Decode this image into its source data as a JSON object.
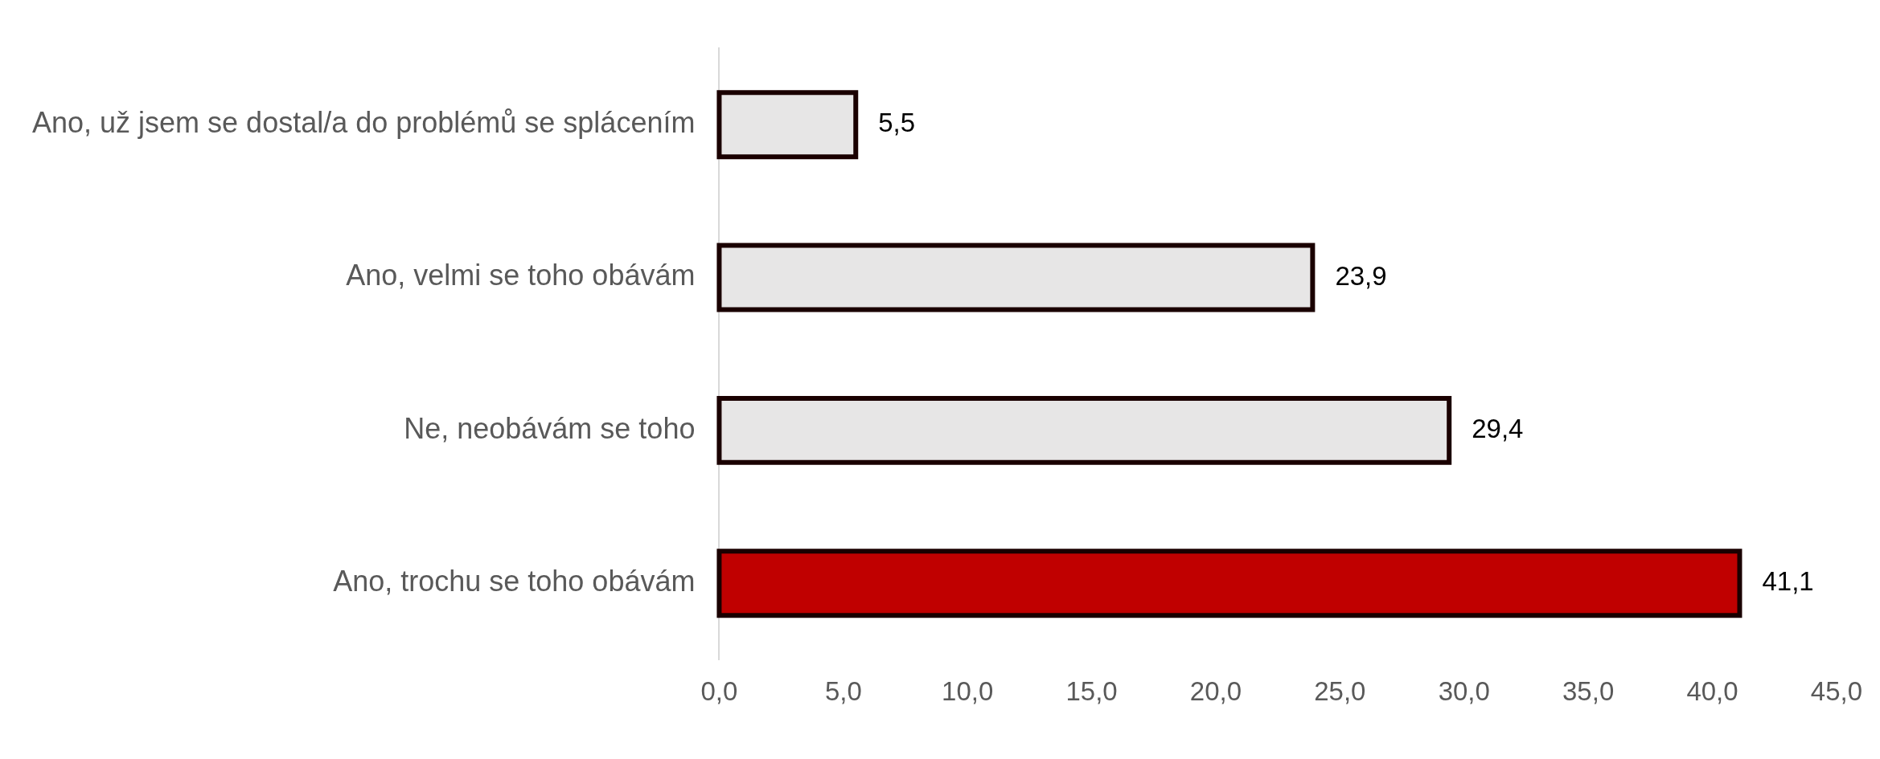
{
  "chart_data": {
    "type": "bar",
    "orientation": "horizontal",
    "categories": [
      "Ano, už jsem se dostal/a do problémů se splácením",
      "Ano, velmi se toho obávám",
      "Ne, neobávám se toho",
      "Ano, trochu se toho obávám"
    ],
    "values": [
      5.5,
      23.9,
      29.4,
      41.1
    ],
    "colors": [
      "#e7e6e6",
      "#e7e6e6",
      "#e7e6e6",
      "#c00000"
    ],
    "value_labels": [
      "5,5",
      "23,9",
      "29,4",
      "41,1"
    ],
    "xlim": [
      0,
      45
    ],
    "xticks": [
      {
        "value": 0,
        "label": "0,0"
      },
      {
        "value": 5,
        "label": "5,0"
      },
      {
        "value": 10,
        "label": "10,0"
      },
      {
        "value": 15,
        "label": "15,0"
      },
      {
        "value": 20,
        "label": "20,0"
      },
      {
        "value": 25,
        "label": "25,0"
      },
      {
        "value": 30,
        "label": "30,0"
      },
      {
        "value": 35,
        "label": "35,0"
      },
      {
        "value": 40,
        "label": "40,0"
      },
      {
        "value": 45,
        "label": "45,0"
      }
    ],
    "grid": false,
    "legend": false
  }
}
